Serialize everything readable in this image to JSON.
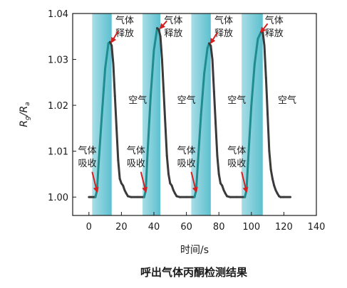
{
  "chart_data": {
    "type": "line",
    "caption": "呼出气体丙酮检测结果",
    "xlabel": "时间/s",
    "ylabel_main": "R",
    "ylabel_sub1": "g",
    "ylabel_sep": "/R",
    "ylabel_sub2": "a",
    "xlim": [
      -10,
      140
    ],
    "ylim": [
      0.996,
      1.04
    ],
    "xticks": [
      0,
      20,
      40,
      60,
      80,
      100,
      120,
      140
    ],
    "xtick_labels": [
      "0",
      "20",
      "40",
      "60",
      "80",
      "100",
      "120",
      "140"
    ],
    "yticks": [
      1.0,
      1.01,
      1.02,
      1.03,
      1.04
    ],
    "ytick_labels": [
      "1.00",
      "1.01",
      "1.02",
      "1.03",
      "1.04"
    ],
    "exposure_windows": [
      {
        "start": 2,
        "end": 14
      },
      {
        "start": 33,
        "end": 44
      },
      {
        "start": 63,
        "end": 75
      },
      {
        "start": 94,
        "end": 107
      }
    ],
    "series": [
      {
        "x": [
          0,
          4,
          5,
          6,
          8,
          10,
          12,
          13,
          14,
          15,
          16,
          17,
          18,
          19,
          20,
          21,
          22,
          23,
          24,
          26,
          30,
          34,
          35,
          36,
          38,
          40,
          42,
          43,
          44,
          45,
          46,
          47,
          48,
          49,
          50,
          51,
          52,
          53,
          54,
          56,
          60,
          65,
          66,
          67,
          69,
          71,
          73,
          74,
          75,
          76,
          77,
          78,
          79,
          80,
          81,
          82,
          83,
          84,
          85,
          87,
          91,
          96,
          97,
          98,
          100,
          102,
          104,
          106,
          107,
          108,
          109,
          110,
          111,
          112,
          113,
          114,
          115,
          116,
          117,
          118,
          120,
          124
        ],
        "y": [
          1.0,
          1.0,
          1.0015,
          1.0075,
          1.018,
          1.028,
          1.0335,
          1.0338,
          1.033,
          1.029,
          1.022,
          1.015,
          1.008,
          1.004,
          1.003,
          1.0025,
          1.0015,
          1.0008,
          1.0002,
          1.0,
          1.0,
          1.0,
          1.0015,
          1.009,
          1.022,
          1.032,
          1.0368,
          1.0365,
          1.035,
          1.03,
          1.023,
          1.016,
          1.009,
          1.005,
          1.003,
          1.0025,
          1.0015,
          1.0008,
          1.0002,
          1.0,
          1.0,
          1.0,
          1.0015,
          1.007,
          1.018,
          1.027,
          1.0325,
          1.0335,
          1.033,
          1.03,
          1.023,
          1.016,
          1.009,
          1.005,
          1.003,
          1.0025,
          1.0015,
          1.0008,
          1.0002,
          1.0,
          1.0,
          1.0,
          1.0015,
          1.008,
          1.02,
          1.029,
          1.0345,
          1.036,
          1.036,
          1.033,
          1.026,
          1.018,
          1.01,
          1.006,
          1.004,
          1.0025,
          1.0015,
          1.0008,
          1.0002,
          1.0,
          1.0,
          1.0
        ]
      }
    ],
    "annotations": [
      {
        "lines": [
          "气体",
          "吸收"
        ],
        "x": -1,
        "y": 1.0095,
        "arrow_from": [
          2,
          1.0055
        ],
        "arrow_to": [
          5,
          1.0012
        ]
      },
      {
        "lines": [
          "气体",
          "吸收"
        ],
        "x": 29,
        "y": 1.0095,
        "arrow_from": [
          32,
          1.0055
        ],
        "arrow_to": [
          35,
          1.0012
        ]
      },
      {
        "lines": [
          "气体",
          "吸收"
        ],
        "x": 60,
        "y": 1.0095,
        "arrow_from": [
          63,
          1.0055
        ],
        "arrow_to": [
          66,
          1.0012
        ]
      },
      {
        "lines": [
          "气体",
          "吸收"
        ],
        "x": 91,
        "y": 1.0095,
        "arrow_from": [
          94,
          1.0055
        ],
        "arrow_to": [
          97,
          1.0012
        ]
      },
      {
        "lines": [
          "气体",
          "释放"
        ],
        "x": 22,
        "y": 1.0378,
        "arrow_from": [
          18,
          1.0362
        ],
        "arrow_to": [
          14,
          1.0338
        ]
      },
      {
        "lines": [
          "气体",
          "释放"
        ],
        "x": 52,
        "y": 1.0378,
        "arrow_from": [
          48,
          1.0384
        ],
        "arrow_to": [
          44,
          1.0368
        ]
      },
      {
        "lines": [
          "气体",
          "释放"
        ],
        "x": 83,
        "y": 1.0378,
        "arrow_from": [
          79,
          1.0358
        ],
        "arrow_to": [
          75,
          1.0336
        ]
      },
      {
        "lines": [
          "气体",
          "释放"
        ],
        "x": 114,
        "y": 1.0378,
        "arrow_from": [
          110,
          1.0378
        ],
        "arrow_to": [
          106,
          1.036
        ]
      },
      {
        "lines": [
          "空气"
        ],
        "x": 30,
        "y": 1.0205
      },
      {
        "lines": [
          "空气"
        ],
        "x": 60,
        "y": 1.0205
      },
      {
        "lines": [
          "空气"
        ],
        "x": 91,
        "y": 1.0205
      },
      {
        "lines": [
          "空气"
        ],
        "x": 122,
        "y": 1.0205
      }
    ],
    "colors": {
      "band_light": "#a8dde6",
      "band_dark": "#5cc0cf",
      "rise": "#1f8c8f",
      "fall": "#3a3a3a",
      "arrow": "#d42020",
      "axis": "#1a1a1a"
    }
  }
}
